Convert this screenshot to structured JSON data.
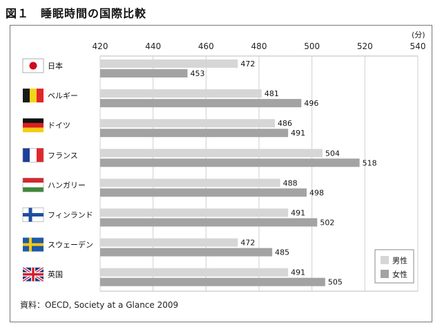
{
  "figure": {
    "title": "図１　睡眠時間の国際比較",
    "unit": "(分)",
    "source": "資料：OECD, Society at a Glance 2009"
  },
  "chart_data": {
    "type": "bar",
    "orientation": "horizontal",
    "title": "図１　睡眠時間の国際比較",
    "xlabel": "(分)",
    "ylabel": "",
    "xlim": [
      420,
      540
    ],
    "xticks": [
      420,
      440,
      460,
      480,
      500,
      520,
      540
    ],
    "grid": true,
    "legend_position": "bottom-right",
    "categories": [
      "日本",
      "ベルギー",
      "ドイツ",
      "フランス",
      "ハンガリー",
      "フィンランド",
      "スウェーデン",
      "英国"
    ],
    "series": [
      {
        "name": "男性",
        "values": [
          472,
          481,
          486,
          504,
          488,
          491,
          472,
          491
        ],
        "color": "#d6d6d6"
      },
      {
        "name": "女性",
        "values": [
          453,
          496,
          491,
          518,
          498,
          502,
          485,
          505
        ],
        "color": "#a3a3a3"
      }
    ],
    "flags": [
      "japan-flag-icon",
      "belgium-flag-icon",
      "germany-flag-icon",
      "france-flag-icon",
      "hungary-flag-icon",
      "finland-flag-icon",
      "sweden-flag-icon",
      "uk-flag-icon"
    ]
  }
}
